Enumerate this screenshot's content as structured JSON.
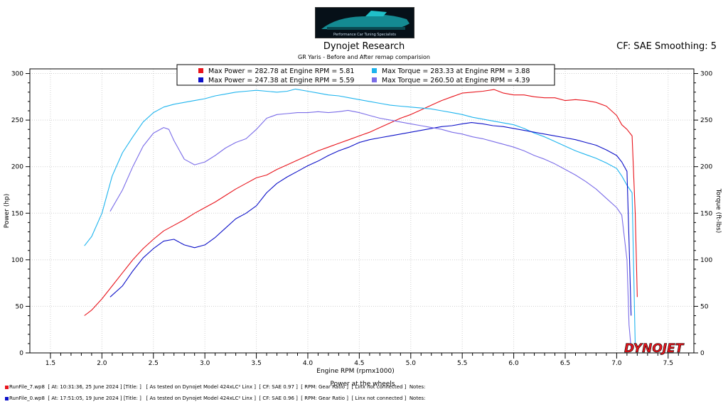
{
  "header": {
    "title": "Dynojet Research",
    "subtitle": "GR Yaris - Before and After remap comparision",
    "cf": "CF: SAE Smoothing: 5",
    "logo_text": "Performance Car Tuning Specialists"
  },
  "legend": [
    {
      "label": "Max Power = 282.78 at Engine RPM = 5.81",
      "color": "#e8141c"
    },
    {
      "label": "Max Torque = 283.33 at Engine RPM = 3.88",
      "color": "#1eb4ee"
    },
    {
      "label": "Max Power = 247.38 at Engine RPM = 5.59",
      "color": "#0c10c8"
    },
    {
      "label": "Max Torque = 260.50 at Engine RPM = 4.39",
      "color": "#7a6ce8"
    }
  ],
  "brand": "DYNOJET",
  "footer": [
    {
      "text": "RunFile_7.wp8  [ At: 10:31:36, 25 June 2024 ] [Title: ]   [ As tested on Dynojet Model 424xLC² Linx ]  [ CF: SAE 0.97 ]  [ RPM: Gear Ratio ]  [ Linx not connected ]  Notes:",
      "color": "#e8141c"
    },
    {
      "text": "RunFile_0.wp8  [ At: 17:51:05, 19 June 2024 ] [Title: ]   [ As tested on Dynojet Model 424xLC² Linx ]  [ CF: SAE 0.96 ]  [ RPM: Gear Ratio ]  [ Linx not connected ]  Notes:",
      "color": "#0c10c8"
    }
  ],
  "chart_data": {
    "type": "line",
    "title": "Dynojet Research",
    "subtitle": "GR Yaris - Before and After remap comparision",
    "xlabel": "Engine RPM (rpmx1000)",
    "xlabel2": "Power at the wheels",
    "ylabel_left": "Power (hp)",
    "ylabel_right": "Torque (ft-lbs)",
    "xlim": [
      1.3,
      7.75
    ],
    "ylim": [
      0,
      305
    ],
    "xticks": [
      "1.5",
      "2.0",
      "2.5",
      "3.0",
      "3.5",
      "4.0",
      "4.5",
      "5.0",
      "5.5",
      "6.0",
      "6.5",
      "7.0",
      "7.5"
    ],
    "yticks": [
      "0",
      "50",
      "100",
      "150",
      "200",
      "250",
      "300"
    ],
    "grid": true,
    "legend_position": "top",
    "series": [
      {
        "name": "Max Power = 282.78 at Engine RPM = 5.81",
        "axis": "power",
        "color": "#e8141c",
        "x": [
          1.83,
          1.9,
          2.0,
          2.1,
          2.2,
          2.3,
          2.4,
          2.5,
          2.6,
          2.7,
          2.8,
          2.9,
          3.0,
          3.1,
          3.2,
          3.3,
          3.4,
          3.5,
          3.6,
          3.7,
          3.8,
          3.9,
          4.0,
          4.1,
          4.2,
          4.3,
          4.4,
          4.5,
          4.6,
          4.7,
          4.8,
          4.9,
          5.0,
          5.1,
          5.2,
          5.3,
          5.4,
          5.5,
          5.6,
          5.7,
          5.81,
          5.9,
          6.0,
          6.1,
          6.2,
          6.3,
          6.4,
          6.5,
          6.6,
          6.7,
          6.8,
          6.9,
          7.0,
          7.05,
          7.1,
          7.15,
          7.18,
          7.2
        ],
        "y": [
          40,
          46,
          58,
          72,
          86,
          100,
          112,
          122,
          131,
          137,
          143,
          150,
          156,
          162,
          169,
          176,
          182,
          188,
          191,
          197,
          202,
          207,
          212,
          217,
          221,
          225,
          229,
          233,
          237,
          242,
          247,
          252,
          256,
          261,
          266,
          271,
          275,
          279,
          280,
          281,
          282.78,
          279,
          277,
          277,
          275,
          274,
          274,
          271,
          272,
          271,
          269,
          265,
          255,
          245,
          240,
          233,
          150,
          60
        ]
      },
      {
        "name": "Max Torque = 283.33 at Engine RPM = 3.88",
        "axis": "torque",
        "color": "#1eb4ee",
        "x": [
          1.83,
          1.9,
          2.0,
          2.1,
          2.2,
          2.3,
          2.4,
          2.5,
          2.6,
          2.7,
          2.8,
          2.9,
          3.0,
          3.1,
          3.2,
          3.3,
          3.4,
          3.5,
          3.6,
          3.7,
          3.8,
          3.88,
          4.0,
          4.1,
          4.2,
          4.3,
          4.4,
          4.5,
          4.6,
          4.7,
          4.8,
          4.9,
          5.0,
          5.1,
          5.2,
          5.3,
          5.4,
          5.5,
          5.6,
          5.7,
          5.8,
          5.9,
          6.0,
          6.1,
          6.2,
          6.3,
          6.4,
          6.5,
          6.6,
          6.7,
          6.8,
          6.9,
          7.0,
          7.05,
          7.1,
          7.15,
          7.18
        ],
        "y": [
          115,
          125,
          150,
          190,
          215,
          232,
          248,
          258,
          264,
          267,
          269,
          271,
          273,
          276,
          278,
          280,
          281,
          282,
          281,
          280,
          281,
          283.33,
          281,
          279,
          277,
          276,
          274,
          272,
          270,
          268,
          266,
          265,
          264,
          263,
          262,
          260,
          258,
          256,
          253,
          251,
          249,
          247,
          245,
          241,
          236,
          232,
          227,
          222,
          217,
          213,
          209,
          204,
          198,
          190,
          180,
          172,
          8
        ]
      },
      {
        "name": "Max Power = 247.38 at Engine RPM = 5.59",
        "axis": "power",
        "color": "#0c10c8",
        "x": [
          2.08,
          2.2,
          2.3,
          2.4,
          2.5,
          2.6,
          2.7,
          2.8,
          2.9,
          3.0,
          3.1,
          3.2,
          3.3,
          3.4,
          3.5,
          3.6,
          3.7,
          3.8,
          3.9,
          4.0,
          4.1,
          4.2,
          4.3,
          4.4,
          4.5,
          4.6,
          4.7,
          4.8,
          4.9,
          5.0,
          5.1,
          5.2,
          5.3,
          5.4,
          5.5,
          5.59,
          5.7,
          5.8,
          5.9,
          6.0,
          6.1,
          6.2,
          6.3,
          6.4,
          6.5,
          6.6,
          6.7,
          6.8,
          6.9,
          7.0,
          7.05,
          7.1,
          7.12,
          7.14
        ],
        "y": [
          60,
          72,
          88,
          102,
          112,
          120,
          122,
          116,
          113,
          116,
          124,
          134,
          144,
          150,
          158,
          172,
          182,
          189,
          195,
          201,
          206,
          212,
          217,
          221,
          226,
          229,
          231,
          233,
          235,
          237,
          239,
          241,
          243,
          244,
          246,
          247.38,
          246,
          244,
          243,
          241,
          239,
          237,
          235,
          233,
          231,
          229,
          226,
          223,
          218,
          212,
          205,
          195,
          120,
          40
        ]
      },
      {
        "name": "Max Torque = 260.50 at Engine RPM = 4.39",
        "axis": "torque",
        "color": "#7a6ce8",
        "x": [
          2.08,
          2.2,
          2.3,
          2.4,
          2.5,
          2.6,
          2.65,
          2.7,
          2.8,
          2.9,
          3.0,
          3.1,
          3.2,
          3.3,
          3.4,
          3.5,
          3.6,
          3.7,
          3.8,
          3.9,
          4.0,
          4.1,
          4.2,
          4.3,
          4.39,
          4.5,
          4.6,
          4.7,
          4.8,
          4.9,
          5.0,
          5.1,
          5.2,
          5.3,
          5.4,
          5.5,
          5.6,
          5.7,
          5.8,
          5.9,
          6.0,
          6.1,
          6.2,
          6.3,
          6.4,
          6.5,
          6.6,
          6.7,
          6.8,
          6.9,
          7.0,
          7.05,
          7.1,
          7.12,
          7.14
        ],
        "y": [
          152,
          175,
          200,
          222,
          236,
          242,
          240,
          228,
          208,
          202,
          205,
          212,
          220,
          226,
          230,
          240,
          252,
          256,
          257,
          258,
          258,
          259,
          258,
          259,
          260.5,
          258,
          255,
          252,
          250,
          248,
          246,
          244,
          242,
          240,
          237,
          235,
          232,
          230,
          227,
          224,
          221,
          217,
          212,
          208,
          203,
          197,
          191,
          184,
          176,
          166,
          156,
          148,
          100,
          30,
          5
        ]
      }
    ]
  }
}
